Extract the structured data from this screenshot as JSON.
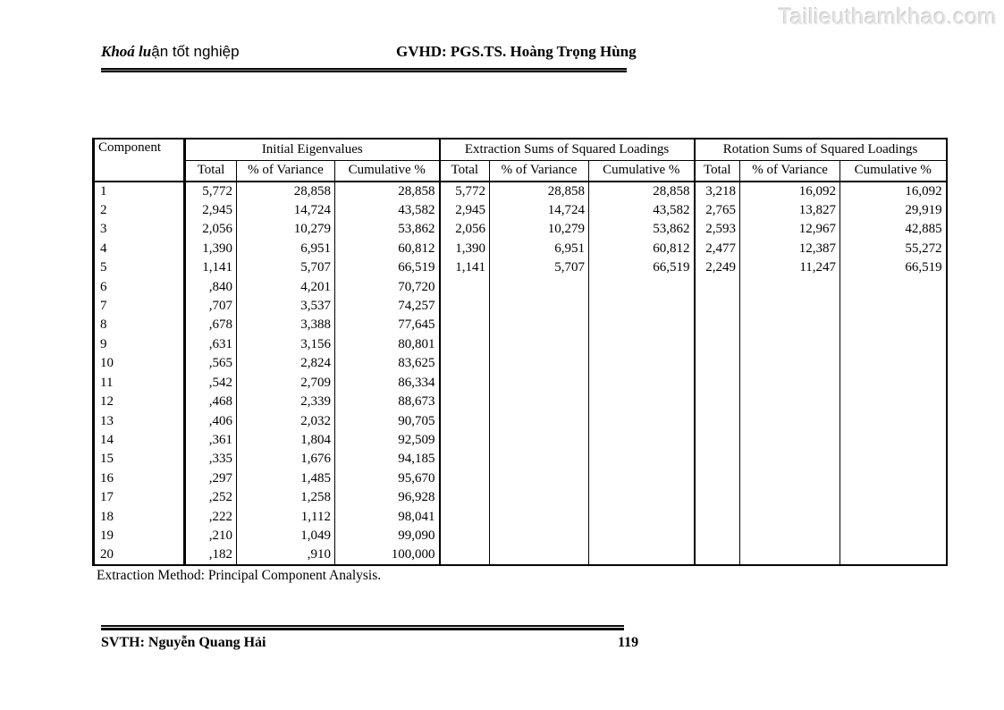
{
  "watermark": "Tailieuthamkhao.com",
  "header": {
    "left_italic": "Khoá lu",
    "left_rest": "ận tốt nghiệp",
    "right": "GVHD: PGS.TS. Hoàng Trọng Hùng"
  },
  "table": {
    "corner_header": "Component",
    "groups": [
      {
        "label": "Initial Eigenvalues"
      },
      {
        "label": "Extraction Sums of Squared Loadings"
      },
      {
        "label": "Rotation Sums of Squared Loadings"
      }
    ],
    "sub_headers": [
      "Total",
      "% of Variance",
      "Cumulative %"
    ],
    "rows": [
      {
        "component": "1",
        "initial": [
          "5,772",
          "28,858",
          "28,858"
        ],
        "extraction": [
          "5,772",
          "28,858",
          "28,858"
        ],
        "rotation": [
          "3,218",
          "16,092",
          "16,092"
        ]
      },
      {
        "component": "2",
        "initial": [
          "2,945",
          "14,724",
          "43,582"
        ],
        "extraction": [
          "2,945",
          "14,724",
          "43,582"
        ],
        "rotation": [
          "2,765",
          "13,827",
          "29,919"
        ]
      },
      {
        "component": "3",
        "initial": [
          "2,056",
          "10,279",
          "53,862"
        ],
        "extraction": [
          "2,056",
          "10,279",
          "53,862"
        ],
        "rotation": [
          "2,593",
          "12,967",
          "42,885"
        ]
      },
      {
        "component": "4",
        "initial": [
          "1,390",
          "6,951",
          "60,812"
        ],
        "extraction": [
          "1,390",
          "6,951",
          "60,812"
        ],
        "rotation": [
          "2,477",
          "12,387",
          "55,272"
        ]
      },
      {
        "component": "5",
        "initial": [
          "1,141",
          "5,707",
          "66,519"
        ],
        "extraction": [
          "1,141",
          "5,707",
          "66,519"
        ],
        "rotation": [
          "2,249",
          "11,247",
          "66,519"
        ]
      },
      {
        "component": "6",
        "initial": [
          ",840",
          "4,201",
          "70,720"
        ],
        "extraction": [
          "",
          "",
          ""
        ],
        "rotation": [
          "",
          "",
          ""
        ]
      },
      {
        "component": "7",
        "initial": [
          ",707",
          "3,537",
          "74,257"
        ],
        "extraction": [
          "",
          "",
          ""
        ],
        "rotation": [
          "",
          "",
          ""
        ]
      },
      {
        "component": "8",
        "initial": [
          ",678",
          "3,388",
          "77,645"
        ],
        "extraction": [
          "",
          "",
          ""
        ],
        "rotation": [
          "",
          "",
          ""
        ]
      },
      {
        "component": "9",
        "initial": [
          ",631",
          "3,156",
          "80,801"
        ],
        "extraction": [
          "",
          "",
          ""
        ],
        "rotation": [
          "",
          "",
          ""
        ]
      },
      {
        "component": "10",
        "initial": [
          ",565",
          "2,824",
          "83,625"
        ],
        "extraction": [
          "",
          "",
          ""
        ],
        "rotation": [
          "",
          "",
          ""
        ]
      },
      {
        "component": "11",
        "initial": [
          ",542",
          "2,709",
          "86,334"
        ],
        "extraction": [
          "",
          "",
          ""
        ],
        "rotation": [
          "",
          "",
          ""
        ]
      },
      {
        "component": "12",
        "initial": [
          ",468",
          "2,339",
          "88,673"
        ],
        "extraction": [
          "",
          "",
          ""
        ],
        "rotation": [
          "",
          "",
          ""
        ]
      },
      {
        "component": "13",
        "initial": [
          ",406",
          "2,032",
          "90,705"
        ],
        "extraction": [
          "",
          "",
          ""
        ],
        "rotation": [
          "",
          "",
          ""
        ]
      },
      {
        "component": "14",
        "initial": [
          ",361",
          "1,804",
          "92,509"
        ],
        "extraction": [
          "",
          "",
          ""
        ],
        "rotation": [
          "",
          "",
          ""
        ]
      },
      {
        "component": "15",
        "initial": [
          ",335",
          "1,676",
          "94,185"
        ],
        "extraction": [
          "",
          "",
          ""
        ],
        "rotation": [
          "",
          "",
          ""
        ]
      },
      {
        "component": "16",
        "initial": [
          ",297",
          "1,485",
          "95,670"
        ],
        "extraction": [
          "",
          "",
          ""
        ],
        "rotation": [
          "",
          "",
          ""
        ]
      },
      {
        "component": "17",
        "initial": [
          ",252",
          "1,258",
          "96,928"
        ],
        "extraction": [
          "",
          "",
          ""
        ],
        "rotation": [
          "",
          "",
          ""
        ]
      },
      {
        "component": "18",
        "initial": [
          ",222",
          "1,112",
          "98,041"
        ],
        "extraction": [
          "",
          "",
          ""
        ],
        "rotation": [
          "",
          "",
          ""
        ]
      },
      {
        "component": "19",
        "initial": [
          ",210",
          "1,049",
          "99,090"
        ],
        "extraction": [
          "",
          "",
          ""
        ],
        "rotation": [
          "",
          "",
          ""
        ]
      },
      {
        "component": "20",
        "initial": [
          ",182",
          ",910",
          "100,000"
        ],
        "extraction": [
          "",
          "",
          ""
        ],
        "rotation": [
          "",
          "",
          ""
        ]
      }
    ],
    "footnote": "Extraction Method: Principal Component Analysis."
  },
  "footer": {
    "left": "SVTH: Nguyễn Quang Hải",
    "page_number": "119"
  }
}
